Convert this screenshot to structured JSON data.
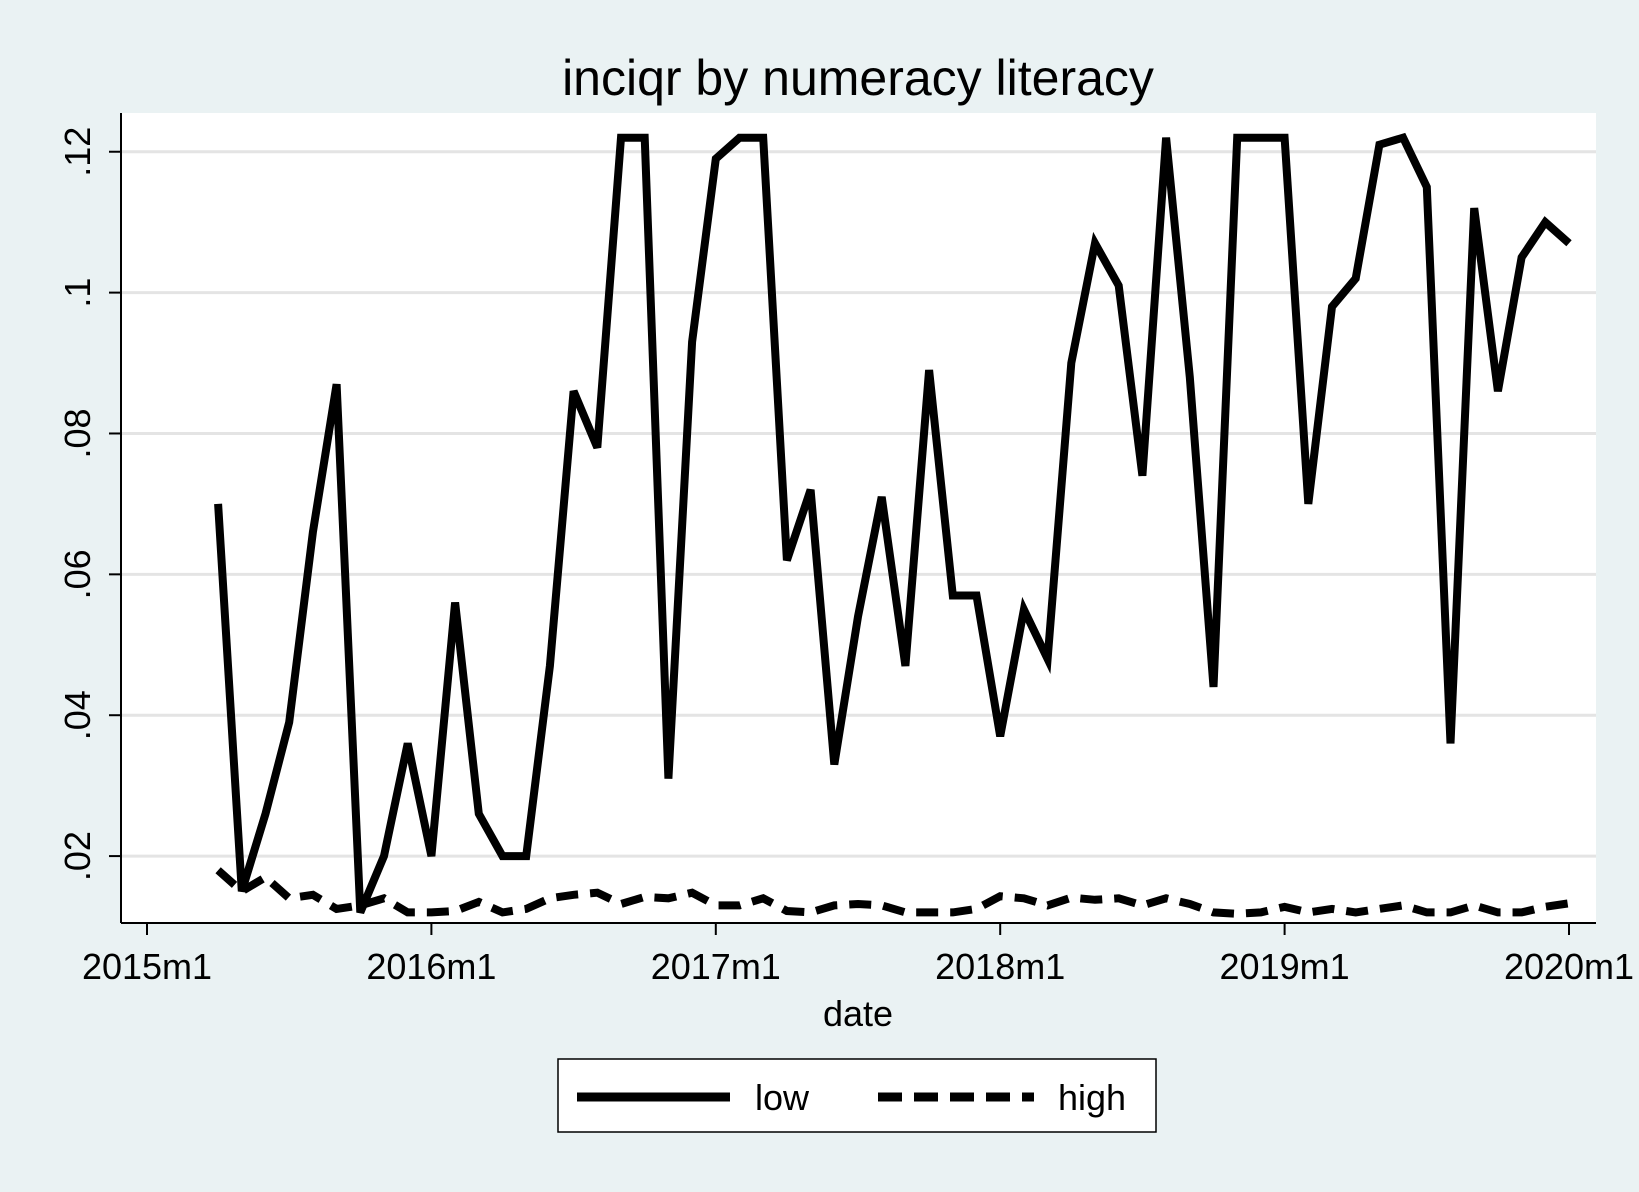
{
  "chart_data": {
    "type": "line",
    "title": "inciqr by numeracy literacy",
    "xlabel": "date",
    "ylabel": "",
    "x_tick_labels": [
      "2015m1",
      "2016m1",
      "2017m1",
      "2018m1",
      "2019m1",
      "2020m1"
    ],
    "y_tick_labels": [
      ".02",
      ".04",
      ".06",
      ".08",
      ".1",
      ".12"
    ],
    "y_ticks": [
      0.02,
      0.04,
      0.06,
      0.08,
      0.1,
      0.12
    ],
    "xlim": [
      "2015-01",
      "2020-01"
    ],
    "ylim": [
      0.0105,
      0.1255
    ],
    "grid": true,
    "legend_position": "bottom",
    "colors": {
      "background": "#eaf2f3",
      "plot_area": "#ffffff",
      "line": "#000000",
      "grid": "#e4e4e4"
    },
    "dates": [
      "2015-04",
      "2015-05",
      "2015-06",
      "2015-07",
      "2015-08",
      "2015-09",
      "2015-10",
      "2015-11",
      "2015-12",
      "2016-01",
      "2016-02",
      "2016-03",
      "2016-04",
      "2016-05",
      "2016-06",
      "2016-07",
      "2016-08",
      "2016-09",
      "2016-10",
      "2016-11",
      "2016-12",
      "2017-01",
      "2017-02",
      "2017-03",
      "2017-04",
      "2017-05",
      "2017-06",
      "2017-07",
      "2017-08",
      "2017-09",
      "2017-10",
      "2017-11",
      "2017-12",
      "2018-01",
      "2018-02",
      "2018-03",
      "2018-04",
      "2018-05",
      "2018-06",
      "2018-07",
      "2018-08",
      "2018-09",
      "2018-10",
      "2018-11",
      "2018-12",
      "2019-01",
      "2019-02",
      "2019-03",
      "2019-04",
      "2019-05",
      "2019-06",
      "2019-07",
      "2019-08",
      "2019-09",
      "2019-10",
      "2019-11",
      "2019-12",
      "2020-01"
    ],
    "series": [
      {
        "name": "low",
        "dash": "solid",
        "values": [
          0.07,
          0.015,
          0.026,
          0.039,
          0.066,
          0.087,
          0.012,
          0.02,
          0.036,
          0.02,
          0.056,
          0.026,
          0.02,
          0.02,
          0.047,
          0.086,
          0.078,
          0.122,
          0.122,
          0.031,
          0.093,
          0.119,
          0.122,
          0.122,
          0.062,
          0.072,
          0.033,
          0.054,
          0.071,
          0.047,
          0.089,
          0.057,
          0.057,
          0.037,
          0.055,
          0.048,
          0.09,
          0.107,
          0.101,
          0.074,
          0.122,
          0.088,
          0.044,
          0.122,
          0.122,
          0.122,
          0.07,
          0.098,
          0.102,
          0.121,
          0.122,
          0.115,
          0.036,
          0.112,
          0.086,
          0.105,
          0.11,
          0.107
        ]
      },
      {
        "name": "high",
        "dash": "dashed",
        "values": [
          0.018,
          0.015,
          0.017,
          0.014,
          0.0145,
          0.0125,
          0.013,
          0.014,
          0.012,
          0.012,
          0.0122,
          0.0135,
          0.012,
          0.0125,
          0.014,
          0.0145,
          0.0148,
          0.0132,
          0.0142,
          0.014,
          0.0148,
          0.013,
          0.013,
          0.014,
          0.0122,
          0.012,
          0.013,
          0.0132,
          0.013,
          0.012,
          0.012,
          0.012,
          0.0125,
          0.0143,
          0.014,
          0.013,
          0.0141,
          0.0138,
          0.014,
          0.013,
          0.014,
          0.0132,
          0.012,
          0.0118,
          0.012,
          0.0128,
          0.012,
          0.0125,
          0.012,
          0.0125,
          0.013,
          0.012,
          0.012,
          0.013,
          0.012,
          0.012,
          0.0128,
          0.0133
        ]
      }
    ]
  }
}
